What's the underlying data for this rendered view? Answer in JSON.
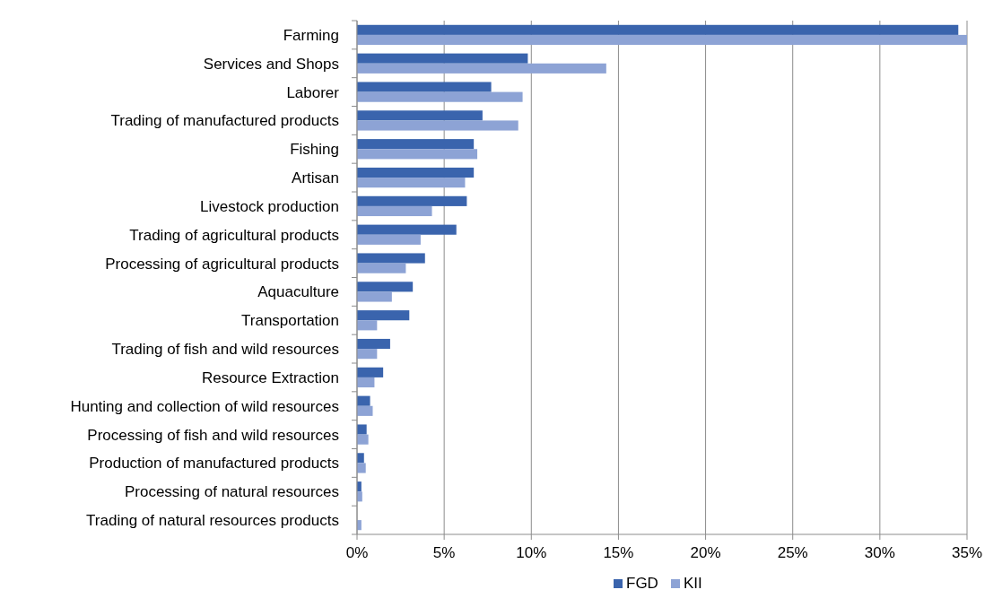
{
  "chart_data": {
    "type": "bar",
    "orientation": "horizontal",
    "categories": [
      "Farming",
      "Services and Shops",
      "Laborer",
      "Trading of manufactured products",
      "Fishing",
      "Artisan",
      "Livestock production",
      "Trading of agricultural products",
      "Processing of agricultural products",
      "Aquaculture",
      "Transportation",
      "Trading of fish and wild resources",
      "Resource Extraction",
      "Hunting and collection of wild resources",
      "Processing of fish and wild resources",
      "Production of manufactured products",
      "Processing of natural resources",
      "Trading of natural resources products"
    ],
    "series": [
      {
        "name": "FGD",
        "color": "#3a64ad",
        "values": [
          34.5,
          9.8,
          7.7,
          7.2,
          6.7,
          6.7,
          6.3,
          5.7,
          3.9,
          3.2,
          3.0,
          1.9,
          1.5,
          0.75,
          0.55,
          0.4,
          0.25,
          0
        ]
      },
      {
        "name": "KII",
        "color": "#8da3d5",
        "values": [
          35,
          14.3,
          9.5,
          9.25,
          6.9,
          6.2,
          4.3,
          3.65,
          2.8,
          2.0,
          1.15,
          1.15,
          1.0,
          0.9,
          0.65,
          0.5,
          0.3,
          0.25
        ]
      }
    ],
    "xlim": [
      0,
      35
    ],
    "xticks": [
      {
        "value": 0,
        "label": "0%"
      },
      {
        "value": 5,
        "label": "5%"
      },
      {
        "value": 10,
        "label": "10%"
      },
      {
        "value": 15,
        "label": "15%"
      },
      {
        "value": 20,
        "label": "20%"
      },
      {
        "value": 25,
        "label": "25%"
      },
      {
        "value": 30,
        "label": "30%"
      },
      {
        "value": 35,
        "label": "35%"
      }
    ],
    "grid": "x",
    "legend": "bottom"
  }
}
